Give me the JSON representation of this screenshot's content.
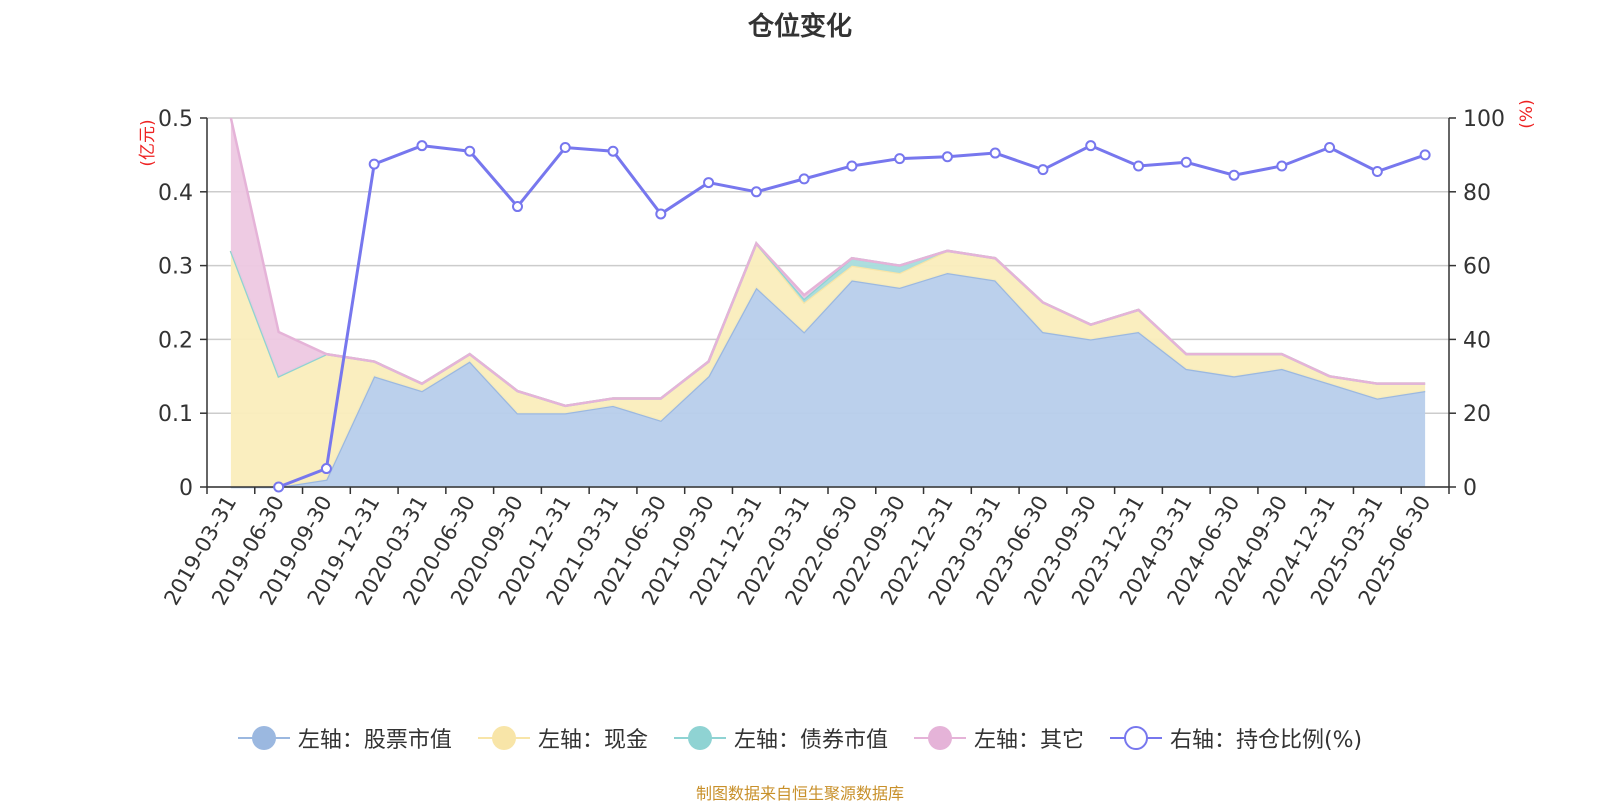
{
  "title": "仓位变化",
  "source": "制图数据来自恒生聚源数据库",
  "chart_data": {
    "type": "area",
    "left_axis": {
      "unit": "(亿元)",
      "min": 0,
      "max": 0.5,
      "ticks": [
        "0",
        "0.1",
        "0.2",
        "0.3",
        "0.4",
        "0.5"
      ]
    },
    "right_axis": {
      "unit": "(%)",
      "min": 0,
      "max": 100,
      "ticks": [
        "0",
        "20",
        "40",
        "60",
        "80",
        "100"
      ]
    },
    "categories": [
      "2019-03-31",
      "2019-06-30",
      "2019-09-30",
      "2019-12-31",
      "2020-03-31",
      "2020-06-30",
      "2020-09-30",
      "2020-12-31",
      "2021-03-31",
      "2021-06-30",
      "2021-09-30",
      "2021-12-31",
      "2022-03-31",
      "2022-06-30",
      "2022-09-30",
      "2022-12-31",
      "2023-03-31",
      "2023-06-30",
      "2023-09-30",
      "2023-12-31",
      "2024-03-31",
      "2024-06-30",
      "2024-09-30",
      "2024-12-31",
      "2025-03-31",
      "2025-06-30"
    ],
    "series": [
      {
        "name": "左轴：股票市值",
        "axis": "left",
        "kind": "area",
        "color": "#9bb8e0",
        "fill": "#b7cdeb",
        "values": [
          0,
          0,
          0.01,
          0.15,
          0.13,
          0.17,
          0.1,
          0.1,
          0.11,
          0.09,
          0.15,
          0.27,
          0.21,
          0.28,
          0.27,
          0.29,
          0.28,
          0.21,
          0.2,
          0.21,
          0.16,
          0.15,
          0.16,
          0.14,
          0.12,
          0.13
        ]
      },
      {
        "name": "左轴：现金",
        "axis": "left",
        "kind": "area",
        "color": "#f8e5a8",
        "fill": "#faedbc",
        "values": [
          0.32,
          0.15,
          0.17,
          0.02,
          0.01,
          0.01,
          0.03,
          0.01,
          0.01,
          0.03,
          0.02,
          0.06,
          0.04,
          0.02,
          0.02,
          0.03,
          0.03,
          0.04,
          0.02,
          0.03,
          0.02,
          0.03,
          0.02,
          0.01,
          0.02,
          0.01
        ]
      },
      {
        "name": "左轴：债券市值",
        "axis": "left",
        "kind": "area",
        "color": "#8fd3d3",
        "fill": "#a8dcdc",
        "values": [
          0,
          0,
          0,
          0,
          0,
          0,
          0,
          0,
          0,
          0,
          0,
          0,
          0.005,
          0.01,
          0.01,
          0,
          0,
          0,
          0,
          0,
          0,
          0,
          0,
          0,
          0,
          0
        ]
      },
      {
        "name": "左轴：其它",
        "axis": "left",
        "kind": "area",
        "color": "#e5b3d8",
        "fill": "#edc8e2",
        "values": [
          0.18,
          0.06,
          0,
          0,
          0,
          0,
          0,
          0,
          0,
          0,
          0,
          0,
          0.005,
          0,
          0,
          0,
          0,
          0,
          0,
          0,
          0,
          0,
          0,
          0,
          0,
          0
        ]
      },
      {
        "name": "右轴：持仓比例(%)",
        "axis": "right",
        "kind": "line",
        "color": "#7777ee",
        "values": [
          null,
          0,
          5,
          87.5,
          92.5,
          91,
          76,
          92,
          91,
          74,
          82.5,
          80,
          83.5,
          87,
          89,
          89.5,
          90.5,
          86,
          92.5,
          87,
          88,
          84.5,
          87,
          92,
          85.5,
          90
        ]
      }
    ],
    "grid": true,
    "legend_position": "bottom"
  }
}
